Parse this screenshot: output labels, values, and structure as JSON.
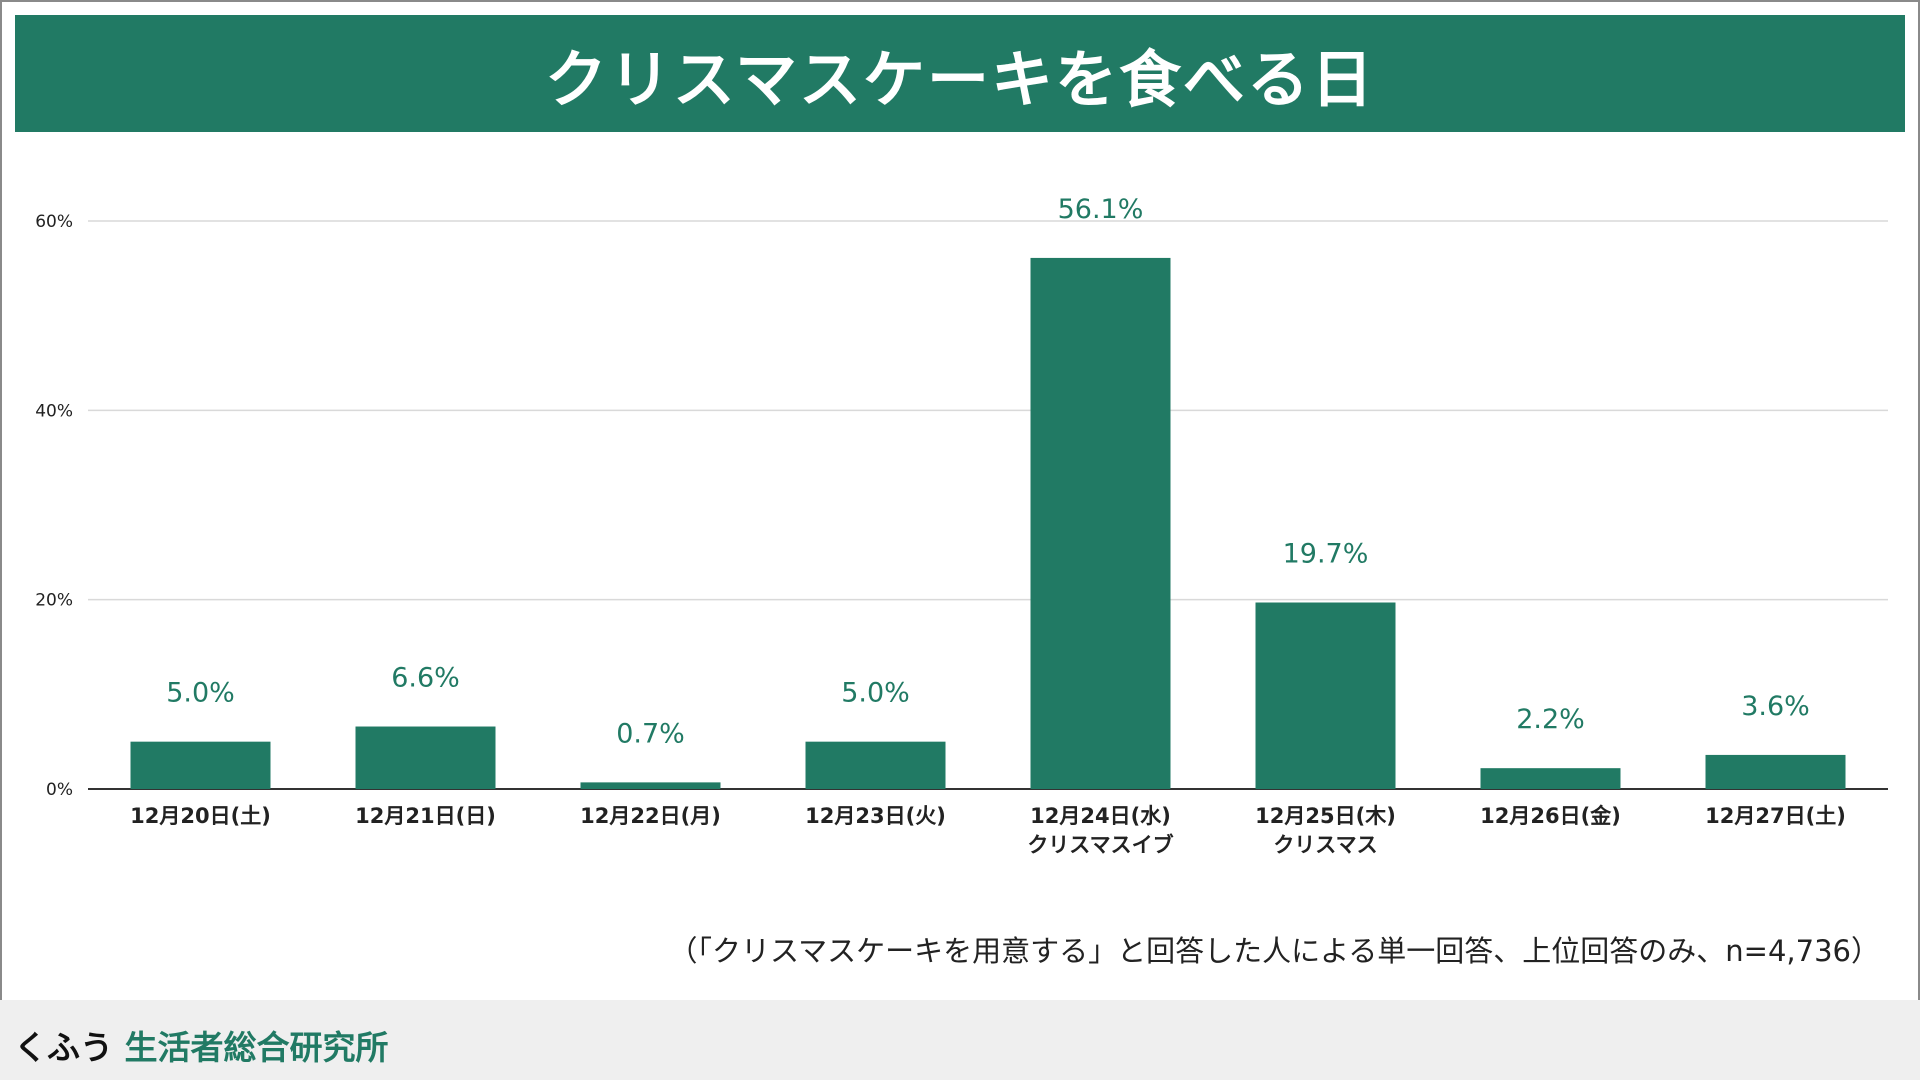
{
  "title": "クリスマスケーキを食べる日",
  "colors": {
    "primary": "#217a64",
    "grid": "#d9d9d9",
    "axis": "#333333",
    "label": "#217a64",
    "text": "#222222"
  },
  "chart_data": {
    "type": "bar",
    "title": "クリスマスケーキを食べる日",
    "categories": [
      [
        "12月20日(土)"
      ],
      [
        "12月21日(日)"
      ],
      [
        "12月22日(月)"
      ],
      [
        "12月23日(火)"
      ],
      [
        "12月24日(水)",
        "クリスマスイブ"
      ],
      [
        "12月25日(木)",
        "クリスマス"
      ],
      [
        "12月26日(金)"
      ],
      [
        "12月27日(土)"
      ]
    ],
    "values": [
      5.0,
      6.6,
      0.7,
      5.0,
      56.1,
      19.7,
      2.2,
      3.6
    ],
    "value_labels": [
      "5.0%",
      "6.6%",
      "0.7%",
      "5.0%",
      "56.1%",
      "19.7%",
      "2.2%",
      "3.6%"
    ],
    "yticks": [
      0,
      20,
      40,
      60
    ],
    "ytick_labels": [
      "0%",
      "20%",
      "40%",
      "60%"
    ],
    "ylim": [
      0,
      60
    ],
    "xlabel": "",
    "ylabel": "",
    "grid": true,
    "legend": "none"
  },
  "note": "（「クリスマスケーキを用意する」と回答した人による単一回答、上位回答のみ、n=4,736）",
  "footer": {
    "brand_prefix": "くふう",
    "brand_name": "生活者総合研究所"
  }
}
